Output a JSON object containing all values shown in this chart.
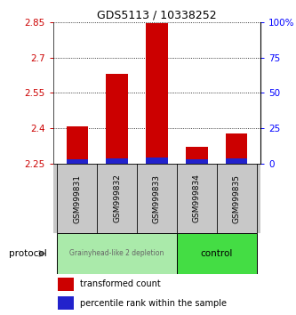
{
  "title": "GDS5113 / 10338252",
  "samples": [
    "GSM999831",
    "GSM999832",
    "GSM999833",
    "GSM999834",
    "GSM999835"
  ],
  "transformed_count": [
    2.41,
    2.63,
    2.845,
    2.32,
    2.38
  ],
  "percentile_rank_pct": [
    3.5,
    4.0,
    4.5,
    3.2,
    3.8
  ],
  "bar_bottom": 2.25,
  "ylim_left": [
    2.25,
    2.85
  ],
  "ylim_right": [
    0,
    100
  ],
  "yticks_left": [
    2.25,
    2.4,
    2.55,
    2.7,
    2.85
  ],
  "ytick_labels_left": [
    "2.25",
    "2.4",
    "2.55",
    "2.7",
    "2.85"
  ],
  "yticks_right": [
    0,
    25,
    50,
    75,
    100
  ],
  "ytick_labels_right": [
    "0",
    "25",
    "50",
    "75",
    "100%"
  ],
  "red_color": "#CC0000",
  "blue_color": "#2222CC",
  "bg_labels": "#C8C8C8",
  "group_light_color": "#AAEAAA",
  "group_dark_color": "#44DD44",
  "group_light_text": "#666666",
  "group_dark_text": "#000000",
  "group1_label": "Grainyhead-like 2 depletion",
  "group2_label": "control",
  "group1_samples": [
    0,
    1,
    2
  ],
  "group2_samples": [
    3,
    4
  ],
  "legend_red": "transformed count",
  "legend_blue": "percentile rank within the sample",
  "protocol_label": "protocol",
  "bar_width": 0.55,
  "title_fontsize": 9
}
